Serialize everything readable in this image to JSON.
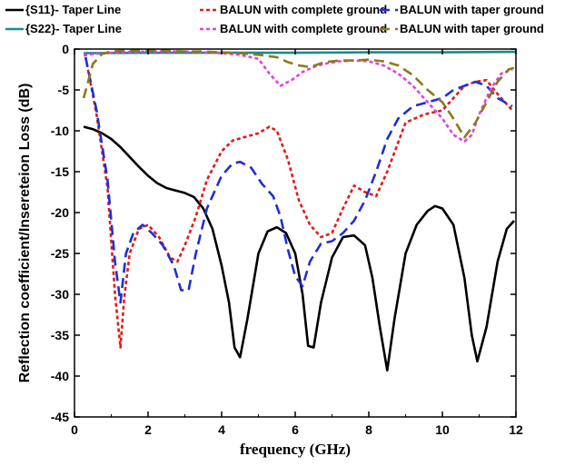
{
  "chart_data": {
    "type": "line",
    "title": "",
    "xlabel": "frequency (GHz)",
    "ylabel": "Reflection coefficient/Insereteion Loss (dB)",
    "xlim": [
      0,
      12
    ],
    "ylim": [
      -45,
      0
    ],
    "xticks": [
      0,
      2,
      4,
      6,
      8,
      10,
      12
    ],
    "yticks": [
      0,
      -5,
      -10,
      -15,
      -20,
      -25,
      -30,
      -35,
      -40,
      -45
    ],
    "grid": false,
    "legend": [
      {
        "text": "{S11}- Taper Line",
        "color": "#000000",
        "dash": "solid"
      },
      {
        "text": "BALUN with complete ground",
        "color": "#e01b1b",
        "dash": "dot"
      },
      {
        "text": "BALUN with taper ground",
        "color": "#1f2fd6",
        "dash": "dash"
      },
      {
        "text": "{S22}- Taper Line",
        "color": "#1a8a8a",
        "dash": "solid"
      },
      {
        "text": "BALUN with complete ground",
        "color": "#e040e0",
        "dash": "dot"
      },
      {
        "text": "BALUN with taper ground",
        "color": "#8a7a1a",
        "dash": "dash"
      }
    ],
    "series": [
      {
        "color": "#000000",
        "dash": "solid",
        "x": [
          0.25,
          0.5,
          0.75,
          1.0,
          1.25,
          1.5,
          1.75,
          2.0,
          2.25,
          2.5,
          2.75,
          3.0,
          3.25,
          3.5,
          3.75,
          4.0,
          4.2,
          4.35,
          4.5,
          4.7,
          5.0,
          5.25,
          5.5,
          5.75,
          6.0,
          6.2,
          6.35,
          6.5,
          6.7,
          7.0,
          7.3,
          7.6,
          7.9,
          8.1,
          8.3,
          8.5,
          8.7,
          9.0,
          9.3,
          9.6,
          9.8,
          10.0,
          10.3,
          10.6,
          10.8,
          10.95,
          11.2,
          11.5,
          11.75,
          11.95
        ],
        "y": [
          -9.5,
          -9.8,
          -10.3,
          -11.0,
          -12.0,
          -13.2,
          -14.4,
          -15.5,
          -16.4,
          -17.0,
          -17.3,
          -17.6,
          -18.1,
          -19.5,
          -22.0,
          -26.5,
          -31.0,
          -36.5,
          -37.7,
          -33.0,
          -25.0,
          -22.3,
          -21.8,
          -22.5,
          -25.0,
          -30.0,
          -36.3,
          -36.5,
          -31.0,
          -25.5,
          -23.0,
          -22.8,
          -24.0,
          -28.0,
          -34.0,
          -39.3,
          -33.0,
          -25.0,
          -21.5,
          -19.8,
          -19.2,
          -19.5,
          -21.5,
          -28.0,
          -35.0,
          -38.2,
          -34.0,
          -26.0,
          -22.0,
          -21.0
        ]
      },
      {
        "color": "#e01b1b",
        "dash": "dot",
        "x": [
          0.3,
          0.6,
          0.9,
          1.1,
          1.25,
          1.35,
          1.5,
          1.75,
          2.0,
          2.3,
          2.6,
          2.8,
          3.0,
          3.3,
          3.6,
          4.0,
          4.3,
          4.6,
          5.0,
          5.3,
          5.5,
          5.8,
          6.1,
          6.4,
          6.7,
          7.0,
          7.3,
          7.6,
          7.9,
          8.2,
          8.5,
          9.0,
          9.5,
          10.0,
          10.3,
          10.6,
          10.9,
          11.2,
          11.5,
          11.9
        ],
        "y": [
          -1.0,
          -8.0,
          -17.0,
          -30.0,
          -36.5,
          -30.5,
          -25.0,
          -22.0,
          -21.5,
          -23.0,
          -25.5,
          -26.0,
          -24.0,
          -20.5,
          -16.0,
          -12.5,
          -11.2,
          -10.8,
          -10.3,
          -9.5,
          -10.0,
          -13.5,
          -18.5,
          -21.5,
          -23.0,
          -22.5,
          -19.5,
          -16.7,
          -17.5,
          -18.0,
          -15.0,
          -9.0,
          -8.0,
          -7.5,
          -6.0,
          -4.5,
          -4.0,
          -3.8,
          -5.5,
          -7.5
        ]
      },
      {
        "color": "#1f2fd6",
        "dash": "dash",
        "x": [
          0.3,
          0.6,
          0.9,
          1.1,
          1.25,
          1.4,
          1.6,
          1.85,
          2.1,
          2.4,
          2.7,
          2.9,
          3.1,
          3.3,
          3.6,
          4.0,
          4.3,
          4.5,
          4.8,
          5.1,
          5.4,
          5.6,
          5.8,
          6.0,
          6.2,
          6.4,
          6.7,
          7.0,
          7.3,
          7.6,
          7.9,
          8.2,
          8.5,
          8.8,
          9.2,
          9.6,
          10.0,
          10.3,
          10.6,
          10.9,
          11.2,
          11.5,
          11.9
        ],
        "y": [
          -1.0,
          -7.5,
          -16.0,
          -26.0,
          -31.0,
          -25.0,
          -22.5,
          -21.5,
          -22.5,
          -24.0,
          -26.5,
          -29.5,
          -29.5,
          -25.0,
          -19.5,
          -15.5,
          -14.0,
          -13.8,
          -14.5,
          -16.5,
          -18.0,
          -20.5,
          -24.5,
          -27.8,
          -29.0,
          -26.0,
          -23.8,
          -23.5,
          -22.5,
          -21.0,
          -18.5,
          -15.0,
          -11.0,
          -8.5,
          -7.0,
          -6.5,
          -6.0,
          -5.0,
          -4.5,
          -4.0,
          -4.5,
          -6.0,
          -7.0
        ]
      },
      {
        "color": "#1a8a8a",
        "dash": "solid",
        "x": [
          0.25,
          2.0,
          4.0,
          6.0,
          8.0,
          10.0,
          12.0
        ],
        "y": [
          -0.5,
          -0.45,
          -0.45,
          -0.45,
          -0.4,
          -0.4,
          -0.35
        ]
      },
      {
        "color": "#e040e0",
        "dash": "dot",
        "x": [
          0.25,
          0.5,
          0.8,
          1.2,
          1.6,
          2.0,
          2.5,
          3.0,
          3.5,
          4.0,
          4.5,
          5.0,
          5.3,
          5.6,
          5.9,
          6.2,
          6.5,
          6.8,
          7.2,
          7.6,
          8.0,
          8.4,
          8.8,
          9.2,
          9.6,
          10.0,
          10.3,
          10.6,
          10.8,
          11.0,
          11.3,
          11.6,
          11.9
        ],
        "y": [
          -0.8,
          -0.6,
          -0.5,
          -0.4,
          -0.35,
          -0.3,
          -0.3,
          -0.3,
          -0.4,
          -0.5,
          -0.7,
          -1.2,
          -3.0,
          -4.5,
          -3.8,
          -2.8,
          -2.2,
          -1.8,
          -1.5,
          -1.4,
          -1.5,
          -2.0,
          -3.0,
          -4.5,
          -6.5,
          -8.5,
          -10.5,
          -11.3,
          -10.5,
          -8.0,
          -5.0,
          -3.0,
          -2.5
        ]
      },
      {
        "color": "#8a7a1a",
        "dash": "dash",
        "x": [
          0.25,
          0.5,
          0.75,
          1.0,
          1.3,
          1.6,
          2.0,
          2.5,
          3.0,
          3.5,
          4.0,
          4.5,
          5.0,
          5.5,
          5.8,
          6.1,
          6.4,
          6.8,
          7.2,
          7.6,
          8.0,
          8.4,
          8.8,
          9.2,
          9.6,
          10.0,
          10.3,
          10.6,
          10.9,
          11.2,
          11.5,
          11.8,
          11.95
        ],
        "y": [
          -6.0,
          -1.8,
          -0.6,
          -0.3,
          -0.2,
          -0.2,
          -0.2,
          -0.2,
          -0.3,
          -0.3,
          -0.4,
          -0.5,
          -0.7,
          -1.0,
          -1.6,
          -2.0,
          -2.2,
          -1.6,
          -1.4,
          -1.4,
          -1.3,
          -1.5,
          -2.0,
          -3.2,
          -5.0,
          -6.5,
          -8.5,
          -10.8,
          -9.0,
          -6.5,
          -4.0,
          -2.5,
          -2.3
        ]
      }
    ]
  }
}
